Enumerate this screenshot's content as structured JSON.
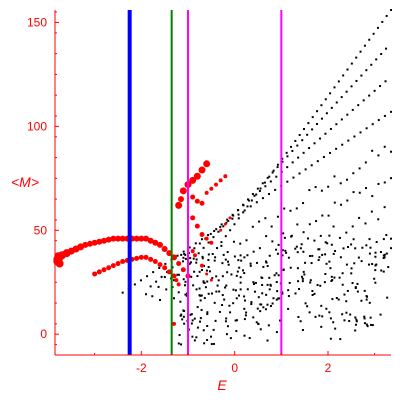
{
  "chart_data": {
    "type": "scatter",
    "title": "",
    "xlabel": "E",
    "ylabel": "<M>",
    "xlim": [
      -3.85,
      3.35
    ],
    "ylim": [
      -10,
      156
    ],
    "xticks": [
      -2,
      0,
      2
    ],
    "yticks": [
      0,
      50,
      100,
      150
    ],
    "grid": false,
    "colors": {
      "axis": "#ff0000",
      "black_points": "#000000",
      "red_points": "#ff0000",
      "blue_line": "#0000ff",
      "green_line": "#008000",
      "magenta_line": "#ff00ff"
    },
    "vertical_lines": [
      {
        "x": -2.25,
        "color": "#0000ff",
        "width": 4
      },
      {
        "x": -1.35,
        "color": "#008000",
        "width": 2
      },
      {
        "x": -1.0,
        "color": "#ff00ff",
        "width": 2
      },
      {
        "x": 1.0,
        "color": "#ff00ff",
        "width": 2
      }
    ],
    "red_series": [
      {
        "x": -3.8,
        "y": 36,
        "s": 4
      },
      {
        "x": -3.75,
        "y": 37,
        "s": 4
      },
      {
        "x": -3.7,
        "y": 38,
        "s": 4
      },
      {
        "x": -3.6,
        "y": 39,
        "s": 4
      },
      {
        "x": -3.5,
        "y": 40,
        "s": 3.5
      },
      {
        "x": -3.4,
        "y": 41,
        "s": 3.5
      },
      {
        "x": -3.3,
        "y": 42,
        "s": 3.5
      },
      {
        "x": -3.2,
        "y": 43,
        "s": 3
      },
      {
        "x": -3.1,
        "y": 43.5,
        "s": 3
      },
      {
        "x": -3.0,
        "y": 44,
        "s": 3
      },
      {
        "x": -2.9,
        "y": 44.5,
        "s": 3
      },
      {
        "x": -2.8,
        "y": 45,
        "s": 3
      },
      {
        "x": -2.7,
        "y": 45.5,
        "s": 3
      },
      {
        "x": -2.6,
        "y": 46,
        "s": 3
      },
      {
        "x": -2.5,
        "y": 46,
        "s": 3
      },
      {
        "x": -2.4,
        "y": 46,
        "s": 3
      },
      {
        "x": -2.3,
        "y": 46,
        "s": 3
      },
      {
        "x": -2.2,
        "y": 46,
        "s": 3
      },
      {
        "x": -2.1,
        "y": 46,
        "s": 3
      },
      {
        "x": -2.0,
        "y": 46,
        "s": 3
      },
      {
        "x": -1.9,
        "y": 46,
        "s": 3
      },
      {
        "x": -1.8,
        "y": 45,
        "s": 3
      },
      {
        "x": -1.7,
        "y": 44,
        "s": 3
      },
      {
        "x": -1.6,
        "y": 43,
        "s": 3
      },
      {
        "x": -1.5,
        "y": 41,
        "s": 3
      },
      {
        "x": -1.4,
        "y": 39,
        "s": 3
      },
      {
        "x": -1.3,
        "y": 37,
        "s": 3
      },
      {
        "x": -1.2,
        "y": 34,
        "s": 2.5
      },
      {
        "x": -1.1,
        "y": 31,
        "s": 2.5
      },
      {
        "x": -1.0,
        "y": 28,
        "s": 2.5
      },
      {
        "x": -3.8,
        "y": 35,
        "s": 4
      },
      {
        "x": -3.75,
        "y": 34,
        "s": 4
      },
      {
        "x": -3.78,
        "y": 37.5,
        "s": 4
      },
      {
        "x": -3.0,
        "y": 29,
        "s": 2.5
      },
      {
        "x": -2.9,
        "y": 30,
        "s": 2.5
      },
      {
        "x": -2.8,
        "y": 31,
        "s": 2.5
      },
      {
        "x": -2.7,
        "y": 32,
        "s": 2.5
      },
      {
        "x": -2.6,
        "y": 33,
        "s": 2.5
      },
      {
        "x": -2.5,
        "y": 34,
        "s": 2.5
      },
      {
        "x": -2.4,
        "y": 35,
        "s": 2.5
      },
      {
        "x": -2.3,
        "y": 35.5,
        "s": 2.5
      },
      {
        "x": -2.2,
        "y": 36,
        "s": 2.5
      },
      {
        "x": -2.1,
        "y": 36.5,
        "s": 2.5
      },
      {
        "x": -2.0,
        "y": 37,
        "s": 2.5
      },
      {
        "x": -1.9,
        "y": 37,
        "s": 2.5
      },
      {
        "x": -1.8,
        "y": 36,
        "s": 2.5
      },
      {
        "x": -1.7,
        "y": 35,
        "s": 2.5
      },
      {
        "x": -1.6,
        "y": 33.5,
        "s": 2.5
      },
      {
        "x": -1.5,
        "y": 32,
        "s": 2.5
      },
      {
        "x": -1.4,
        "y": 30,
        "s": 2.5
      },
      {
        "x": -1.3,
        "y": 28,
        "s": 2.5
      },
      {
        "x": -1.25,
        "y": 26,
        "s": 2
      },
      {
        "x": -1.2,
        "y": 24,
        "s": 2
      },
      {
        "x": -1.2,
        "y": 62,
        "s": 3.5
      },
      {
        "x": -1.1,
        "y": 69,
        "s": 3.5
      },
      {
        "x": -1.0,
        "y": 72,
        "s": 3.5
      },
      {
        "x": -0.9,
        "y": 74,
        "s": 3.5
      },
      {
        "x": -0.8,
        "y": 76,
        "s": 3.5
      },
      {
        "x": -0.7,
        "y": 79,
        "s": 3.5
      },
      {
        "x": -0.6,
        "y": 82,
        "s": 3.5
      },
      {
        "x": -1.15,
        "y": 65,
        "s": 3
      },
      {
        "x": -0.9,
        "y": 66,
        "s": 2.5
      },
      {
        "x": -0.8,
        "y": 64,
        "s": 2.5
      },
      {
        "x": -0.7,
        "y": 63,
        "s": 2.5
      },
      {
        "x": -0.6,
        "y": 68,
        "s": 2
      },
      {
        "x": -0.5,
        "y": 70,
        "s": 2
      },
      {
        "x": -0.4,
        "y": 72,
        "s": 2
      },
      {
        "x": -0.3,
        "y": 74,
        "s": 2
      },
      {
        "x": -0.2,
        "y": 76,
        "s": 2
      },
      {
        "x": -0.9,
        "y": 56,
        "s": 2.5
      },
      {
        "x": -0.8,
        "y": 52,
        "s": 2.5
      },
      {
        "x": -0.7,
        "y": 48,
        "s": 2.5
      },
      {
        "x": -0.6,
        "y": 46,
        "s": 2
      },
      {
        "x": -0.5,
        "y": 44,
        "s": 2
      },
      {
        "x": -0.3,
        "y": 50,
        "s": 1.5
      },
      {
        "x": -0.2,
        "y": 53,
        "s": 1.5
      },
      {
        "x": -0.1,
        "y": 56,
        "s": 1.5
      },
      {
        "x": -1.3,
        "y": 5,
        "s": 2
      },
      {
        "x": -0.9,
        "y": 40,
        "s": 2
      },
      {
        "x": -0.85,
        "y": 38,
        "s": 2
      },
      {
        "x": -0.7,
        "y": 33,
        "s": 2
      },
      {
        "x": -0.6,
        "y": 29,
        "s": 1.5
      },
      {
        "x": -0.5,
        "y": 26,
        "s": 1.5
      }
    ],
    "black_bands": [
      {
        "x0": -0.75,
        "y0": 30,
        "x1": 3.35,
        "y1": 156,
        "n": 45
      },
      {
        "x0": -1.3,
        "y0": 26,
        "x1": 3.35,
        "y1": 140,
        "n": 45
      },
      {
        "x0": -1.8,
        "y0": 23,
        "x1": 3.35,
        "y1": 124,
        "n": 45
      },
      {
        "x0": -2.4,
        "y0": 20,
        "x1": 3.35,
        "y1": 107,
        "n": 45
      },
      {
        "x0": -1.9,
        "y0": 18,
        "x1": 3.35,
        "y1": 90,
        "n": 40
      },
      {
        "x0": -1.6,
        "y0": 17,
        "x1": 3.35,
        "y1": 75,
        "n": 38
      },
      {
        "x0": -1.3,
        "y0": 16,
        "x1": 3.35,
        "y1": 60,
        "n": 35
      },
      {
        "x0": -1.1,
        "y0": 12,
        "x1": 3.35,
        "y1": 48,
        "n": 30
      },
      {
        "x0": -0.9,
        "y0": 8,
        "x1": 3.35,
        "y1": 38,
        "n": 28
      }
    ]
  }
}
